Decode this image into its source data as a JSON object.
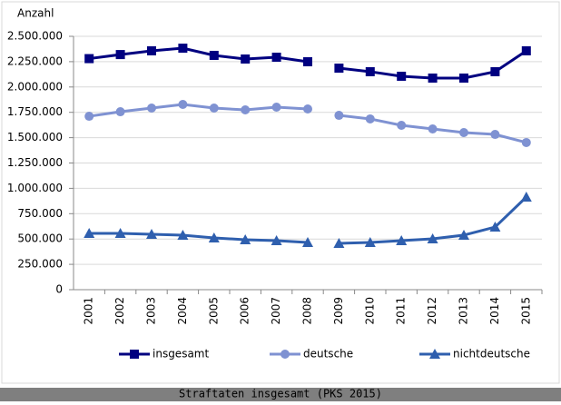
{
  "chart_data": {
    "type": "line",
    "y_label": "Anzahl",
    "caption": "Straftaten insgesamt (PKS 2015)",
    "categories": [
      "2001",
      "2002",
      "2003",
      "2004",
      "2005",
      "2006",
      "2007",
      "2008",
      "2009",
      "2010",
      "2011",
      "2012",
      "2013",
      "2014",
      "2015"
    ],
    "line_break_after": "2008",
    "series": [
      {
        "name": "insgesamt",
        "color": "#000080",
        "marker": "square",
        "values": [
          2280000,
          2320000,
          2357000,
          2383000,
          2312000,
          2276000,
          2294000,
          2249000,
          2186000,
          2151000,
          2106000,
          2088000,
          2088000,
          2151000,
          2357000
        ]
      },
      {
        "name": "deutsche",
        "color": "#7f92d2",
        "marker": "circle",
        "values": [
          1711000,
          1756000,
          1792000,
          1828000,
          1792000,
          1774000,
          1801000,
          1783000,
          1720000,
          1685000,
          1622000,
          1586000,
          1550000,
          1532000,
          1452000
        ]
      },
      {
        "name": "nichtdeutsche",
        "color": "#2f5fae",
        "marker": "triangle",
        "values": [
          556000,
          556000,
          547000,
          538000,
          511000,
          493000,
          484000,
          466000,
          457000,
          466000,
          484000,
          502000,
          538000,
          618000,
          914000
        ]
      }
    ],
    "ylim": [
      0,
      2500000
    ],
    "yticks": [
      0,
      {
        "value": 250000,
        "label": "250.000"
      },
      {
        "value": 500000,
        "label": "500.000"
      },
      {
        "value": 750000,
        "label": "750.000"
      },
      {
        "value": 1000000,
        "label": "1.000.000"
      },
      {
        "value": 1250000,
        "label": "1.250.000"
      },
      {
        "value": 1500000,
        "label": "1.500.000"
      },
      {
        "value": 1750000,
        "label": "1.750.000"
      },
      {
        "value": 2000000,
        "label": "2.000.000"
      },
      {
        "value": 2250000,
        "label": "2.250.000"
      },
      {
        "value": 2500000,
        "label": "2.500.000"
      }
    ],
    "grid": true
  }
}
